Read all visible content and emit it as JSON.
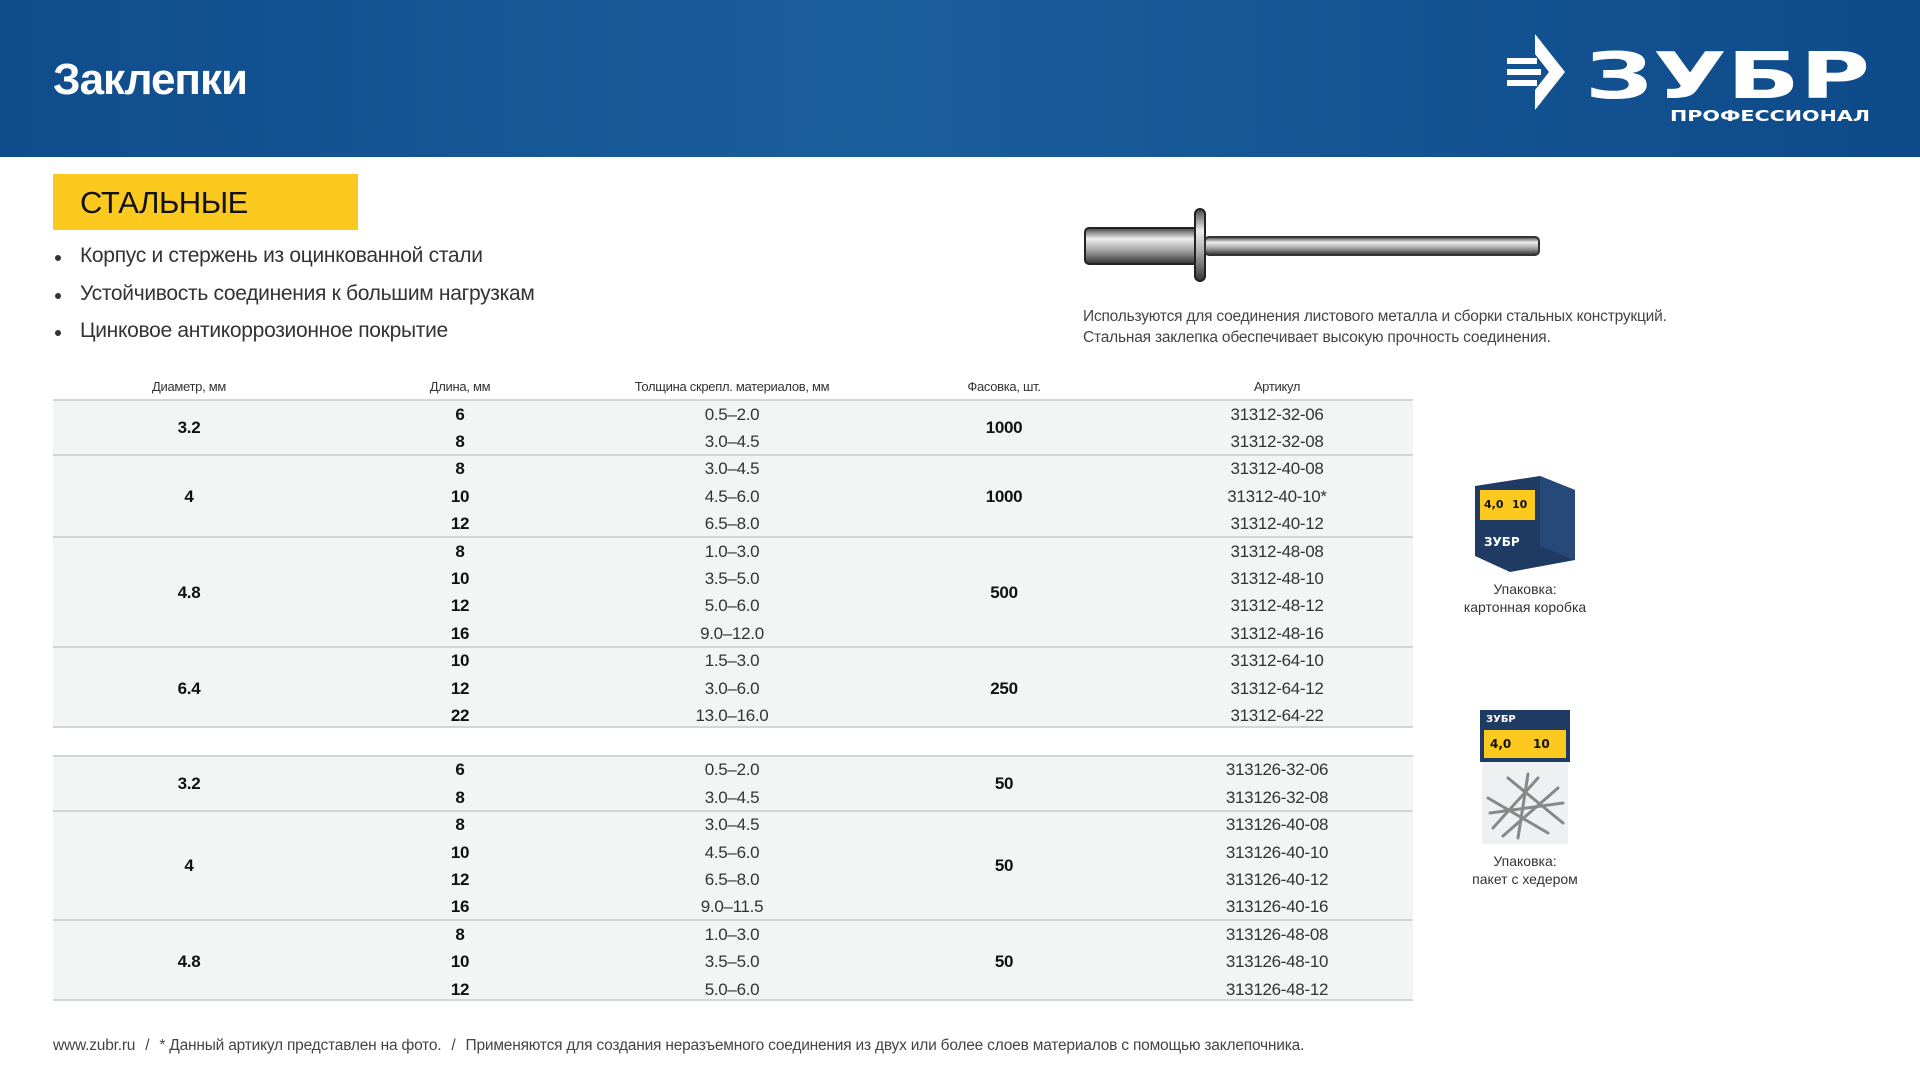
{
  "header": {
    "title": "Заклепки",
    "logo_text": "ЗУБР",
    "logo_subtext": "ПРОФЕССИОНАЛ",
    "bg_color": "#0f4c8c"
  },
  "section": {
    "badge": "СТАЛЬНЫЕ",
    "badge_color": "#fcca1e",
    "bullets": [
      "Корпус и стержень из оцинкованной стали",
      "Устойчивость соединения к большим нагрузкам",
      "Цинковое антикоррозионное покрытие"
    ],
    "description": [
      "Используются для соединения листового металла и сборки стальных конструкций.",
      "Стальная заклепка обеспечивает высокую прочность соединения."
    ]
  },
  "table": {
    "headers": [
      "Диаметр, мм",
      "Длина, мм",
      "Толщина скрепл. материалов, мм",
      "Фасовка, шт.",
      "Артикул"
    ],
    "sections": [
      [
        {
          "diameter": "3.2",
          "pack": "1000",
          "rows": [
            [
              "6",
              "0.5–2.0",
              "31312-32-06"
            ],
            [
              "8",
              "3.0–4.5",
              "31312-32-08"
            ]
          ]
        },
        {
          "diameter": "4",
          "pack": "1000",
          "rows": [
            [
              "8",
              "3.0–4.5",
              "31312-40-08"
            ],
            [
              "10",
              "4.5–6.0",
              "31312-40-10*"
            ],
            [
              "12",
              "6.5–8.0",
              "31312-40-12"
            ]
          ]
        },
        {
          "diameter": "4.8",
          "pack": "500",
          "rows": [
            [
              "8",
              "1.0–3.0",
              "31312-48-08"
            ],
            [
              "10",
              "3.5–5.0",
              "31312-48-10"
            ],
            [
              "12",
              "5.0–6.0",
              "31312-48-12"
            ],
            [
              "16",
              "9.0–12.0",
              "31312-48-16"
            ]
          ]
        },
        {
          "diameter": "6.4",
          "pack": "250",
          "rows": [
            [
              "10",
              "1.5–3.0",
              "31312-64-10"
            ],
            [
              "12",
              "3.0–6.0",
              "31312-64-12"
            ],
            [
              "22",
              "13.0–16.0",
              "31312-64-22"
            ]
          ]
        }
      ],
      [
        {
          "diameter": "3.2",
          "pack": "50",
          "rows": [
            [
              "6",
              "0.5–2.0",
              "313126-32-06"
            ],
            [
              "8",
              "3.0–4.5",
              "313126-32-08"
            ]
          ]
        },
        {
          "diameter": "4",
          "pack": "50",
          "rows": [
            [
              "8",
              "3.0–4.5",
              "313126-40-08"
            ],
            [
              "10",
              "4.5–6.0",
              "313126-40-10"
            ],
            [
              "12",
              "6.5–8.0",
              "313126-40-12"
            ],
            [
              "16",
              "9.0–11.5",
              "313126-40-16"
            ]
          ]
        },
        {
          "diameter": "4.8",
          "pack": "50",
          "rows": [
            [
              "8",
              "1.0–3.0",
              "313126-48-08"
            ],
            [
              "10",
              "3.5–5.0",
              "313126-48-10"
            ],
            [
              "12",
              "5.0–6.0",
              "313126-48-12"
            ]
          ]
        }
      ]
    ]
  },
  "packaging": [
    {
      "line1": "Упаковка:",
      "line2": "картонная коробка",
      "box_label": "4,0",
      "box_len": "10"
    },
    {
      "line1": "Упаковка:",
      "line2": "пакет с хедером",
      "box_label": "4,0",
      "box_len": "10"
    }
  ],
  "footer": {
    "site": "www.zubr.ru",
    "note": "* Данный артикул представлен на фото.",
    "usage": "Применяются для создания неразъемного соединения из двух или более слоев материалов с помощью заклепочника.",
    "separator": "/"
  }
}
